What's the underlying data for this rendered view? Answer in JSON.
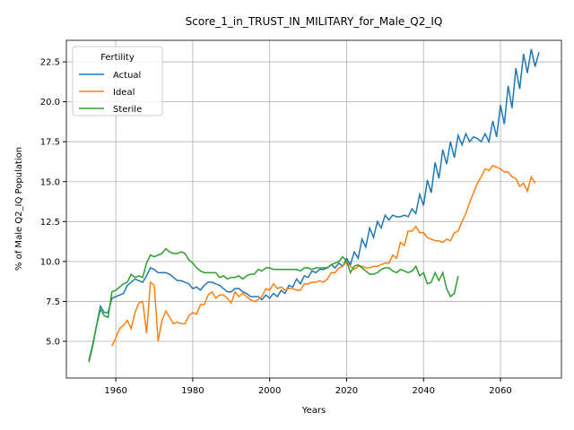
{
  "chart_data": {
    "type": "line",
    "title": "Score_1_in_TRUST_IN_MILITARY_for_Male_Q2_IQ",
    "x_label": "Years",
    "y_label": "% of Male Q2_IQ Population",
    "legend_title": "Fertility",
    "legend_position": "upper left",
    "grid": true,
    "x": [
      1953,
      1954,
      1955,
      1956,
      1957,
      1958,
      1959,
      1960,
      1961,
      1962,
      1963,
      1964,
      1965,
      1966,
      1967,
      1968,
      1969,
      1970,
      1971,
      1972,
      1973,
      1974,
      1975,
      1976,
      1977,
      1978,
      1979,
      1980,
      1981,
      1982,
      1983,
      1984,
      1985,
      1986,
      1987,
      1988,
      1989,
      1990,
      1991,
      1992,
      1993,
      1994,
      1995,
      1996,
      1997,
      1998,
      1999,
      2000,
      2001,
      2002,
      2003,
      2004,
      2005,
      2006,
      2007,
      2008,
      2009,
      2010,
      2011,
      2012,
      2013,
      2014,
      2015,
      2016,
      2017,
      2018,
      2019,
      2020,
      2021,
      2022,
      2023,
      2024,
      2025,
      2026,
      2027,
      2028,
      2029,
      2030,
      2031,
      2032,
      2033,
      2034,
      2035,
      2036,
      2037,
      2038,
      2039,
      2040,
      2041,
      2042,
      2043,
      2044,
      2045,
      2046,
      2047,
      2048,
      2049,
      2050,
      2051,
      2052,
      2053,
      2054,
      2055,
      2056,
      2057,
      2058,
      2059,
      2060,
      2061,
      2062,
      2063,
      2064,
      2065,
      2066,
      2067,
      2068,
      2069,
      2070
    ],
    "xlim": [
      1947.15,
      2075.85
    ],
    "xticks": [
      1960,
      1980,
      2000,
      2020,
      2040,
      2060
    ],
    "ylim": [
      2.7,
      23.85
    ],
    "yticks": [
      {
        "value": 5,
        "label": "5.0"
      },
      7.5,
      {
        "value": 10,
        "label": "10.0"
      },
      12.5,
      {
        "value": 15,
        "label": "15.0"
      },
      17.5,
      {
        "value": 20,
        "label": "20.0"
      },
      22.5
    ],
    "series": [
      {
        "name": "Actual",
        "color": "#1f77b4",
        "values": [
          3.8,
          4.8,
          6.0,
          7.2,
          6.8,
          6.8,
          7.7,
          7.8,
          7.9,
          8.0,
          8.5,
          8.7,
          8.9,
          8.8,
          8.7,
          9.1,
          9.6,
          9.5,
          9.3,
          9.3,
          9.3,
          9.2,
          9.0,
          8.8,
          8.8,
          8.7,
          8.6,
          8.3,
          8.4,
          8.2,
          8.5,
          8.7,
          8.7,
          8.6,
          8.5,
          8.3,
          8.1,
          8.1,
          8.3,
          8.3,
          8.1,
          8.0,
          7.8,
          7.8,
          7.8,
          7.6,
          7.9,
          7.7,
          8.0,
          7.8,
          8.2,
          8.0,
          8.5,
          8.4,
          8.9,
          8.6,
          9.1,
          9.0,
          9.4,
          9.3,
          9.5,
          9.5,
          9.6,
          9.8,
          9.6,
          9.9,
          9.7,
          10.2,
          9.8,
          10.6,
          10.2,
          11.4,
          10.9,
          12.1,
          11.5,
          12.5,
          12.1,
          12.9,
          12.6,
          12.9,
          12.8,
          12.8,
          12.9,
          12.8,
          13.3,
          13.0,
          14.2,
          13.5,
          15.1,
          14.3,
          16.2,
          15.2,
          17.0,
          16.1,
          17.5,
          16.5,
          17.9,
          17.3,
          18.0,
          17.5,
          17.8,
          17.7,
          17.5,
          18.0,
          17.5,
          18.8,
          17.8,
          19.8,
          18.6,
          21.0,
          19.6,
          22.1,
          20.8,
          23.0,
          21.8,
          23.3,
          22.2,
          23.1
        ]
      },
      {
        "name": "Ideal",
        "color": "#ff7f0e",
        "values": [
          null,
          null,
          null,
          null,
          null,
          null,
          4.7,
          5.2,
          5.8,
          6.0,
          6.3,
          5.8,
          6.8,
          7.4,
          7.5,
          5.5,
          8.7,
          8.5,
          5.0,
          6.3,
          6.9,
          6.5,
          6.1,
          6.2,
          6.1,
          6.1,
          6.6,
          6.8,
          6.7,
          7.3,
          7.3,
          7.9,
          8.1,
          7.7,
          7.9,
          7.9,
          7.7,
          7.4,
          8.1,
          7.8,
          8.0,
          7.8,
          7.6,
          7.5,
          7.6,
          7.8,
          8.3,
          8.2,
          8.6,
          8.3,
          8.4,
          8.2,
          8.3,
          8.3,
          8.2,
          8.2,
          8.6,
          8.6,
          8.7,
          8.7,
          8.8,
          8.7,
          8.9,
          9.3,
          9.3,
          9.6,
          9.7,
          10.0,
          9.7,
          9.5,
          9.7,
          9.7,
          9.6,
          9.6,
          9.7,
          9.7,
          9.8,
          9.9,
          9.9,
          10.4,
          10.2,
          11.2,
          11.0,
          11.9,
          11.9,
          12.2,
          11.8,
          11.8,
          11.5,
          11.4,
          11.3,
          11.3,
          11.2,
          11.4,
          11.3,
          11.8,
          11.9,
          12.5,
          13.0,
          13.7,
          14.3,
          14.9,
          15.3,
          15.8,
          15.7,
          16.0,
          15.9,
          15.8,
          15.6,
          15.6,
          15.3,
          15.2,
          14.7,
          14.9,
          14.4,
          15.3,
          14.9,
          null
        ]
      },
      {
        "name": "Sterile",
        "color": "#2ca02c",
        "values": [
          3.7,
          4.7,
          6.0,
          7.0,
          6.6,
          6.5,
          8.1,
          8.2,
          8.4,
          8.6,
          8.7,
          9.2,
          9.0,
          9.1,
          9.0,
          9.9,
          10.4,
          10.3,
          10.4,
          10.5,
          10.8,
          10.6,
          10.5,
          10.5,
          10.6,
          10.5,
          10.1,
          9.9,
          9.6,
          9.4,
          9.3,
          9.3,
          9.3,
          9.3,
          9.0,
          9.1,
          8.9,
          9.0,
          9.0,
          9.1,
          8.9,
          9.1,
          9.2,
          9.2,
          9.5,
          9.4,
          9.6,
          9.6,
          9.5,
          9.5,
          9.5,
          9.5,
          9.5,
          9.5,
          9.5,
          9.4,
          9.6,
          9.6,
          9.5,
          9.6,
          9.6,
          9.6,
          9.6,
          9.8,
          9.9,
          10.0,
          10.3,
          10.0,
          9.3,
          9.7,
          9.8,
          9.6,
          9.4,
          9.2,
          9.2,
          9.3,
          9.5,
          9.6,
          9.6,
          9.4,
          9.3,
          9.5,
          9.4,
          9.3,
          9.4,
          9.7,
          9.1,
          9.3,
          8.6,
          8.7,
          9.3,
          8.8,
          9.3,
          8.3,
          7.8,
          8.0,
          9.1,
          null,
          null,
          null,
          null,
          null,
          null,
          null,
          null,
          null,
          null,
          null,
          null,
          null,
          null,
          null,
          null,
          null,
          null,
          null,
          null,
          null
        ]
      }
    ]
  }
}
